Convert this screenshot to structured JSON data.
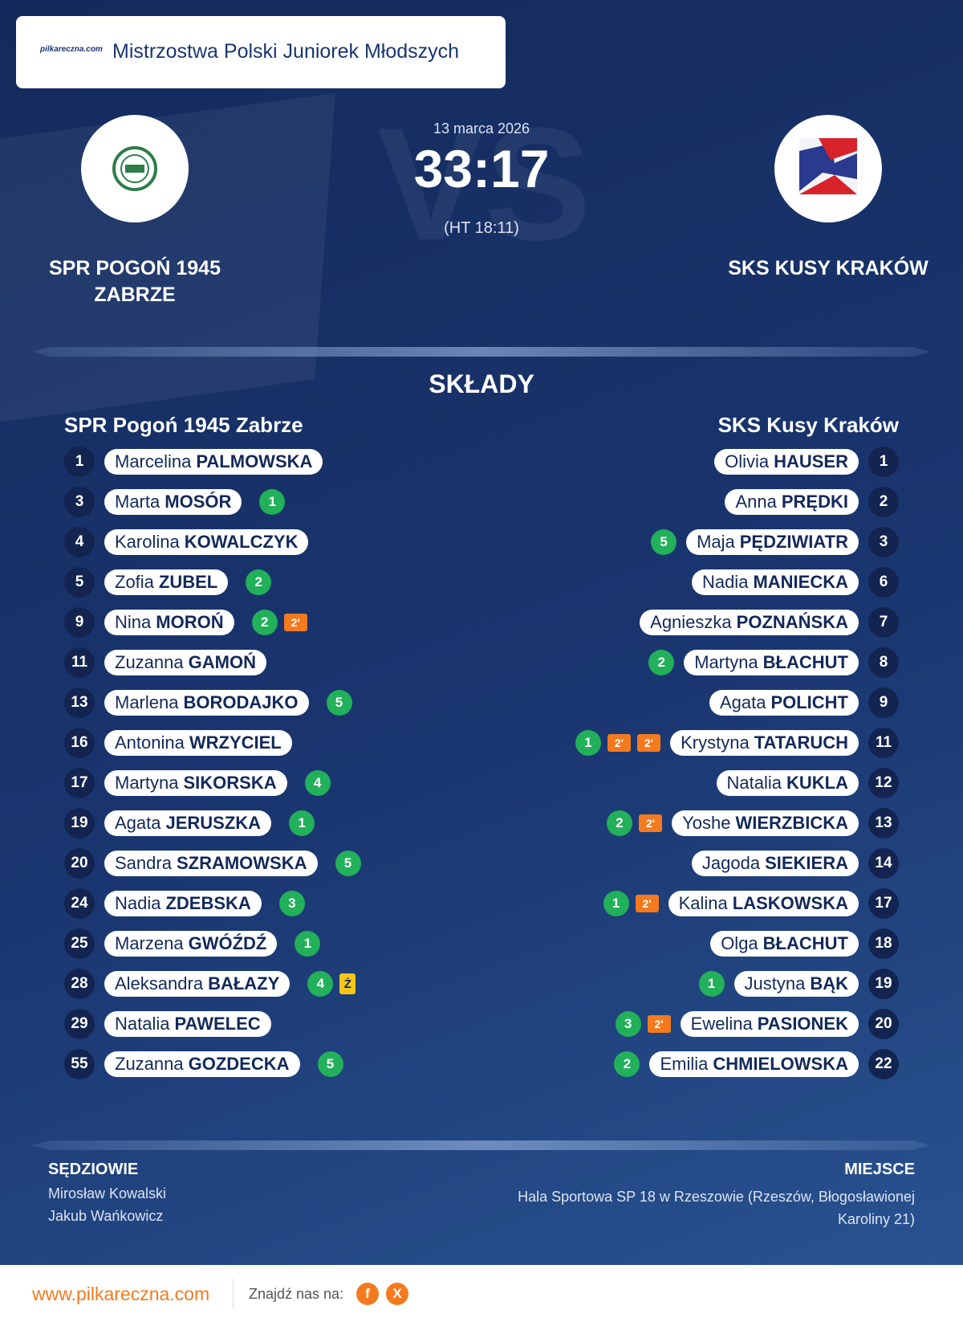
{
  "header": {
    "logo": "pilkareczna.com",
    "title": "Mistrzostwa Polski Juniorek Młodszych"
  },
  "match": {
    "watermark": "VS",
    "date": "13 marca 2026",
    "score": "33:17",
    "halftime": "(HT 18:11)",
    "home_team": "SPR POGOŃ 1945 ZABRZE",
    "away_team": "SKS KUSY KRAKÓW"
  },
  "lineups": {
    "title": "SKŁADY",
    "home": {
      "name": "SPR Pogoń 1945 Zabrze",
      "players": [
        {
          "number": 1,
          "first_name": "Marcelina",
          "last_name": "PALMOWSKA"
        },
        {
          "number": 3,
          "first_name": "Marta",
          "last_name": "MOSÓR",
          "goals": 1
        },
        {
          "number": 4,
          "first_name": "Karolina",
          "last_name": "KOWALCZYK"
        },
        {
          "number": 5,
          "first_name": "Zofia",
          "last_name": "ZUBEL",
          "goals": 2
        },
        {
          "number": 9,
          "first_name": "Nina",
          "last_name": "MOROŃ",
          "goals": 2,
          "suspensions": [
            "2'"
          ]
        },
        {
          "number": 11,
          "first_name": "Zuzanna",
          "last_name": "GAMOŃ"
        },
        {
          "number": 13,
          "first_name": "Marlena",
          "last_name": "BORODAJKO",
          "goals": 5
        },
        {
          "number": 16,
          "first_name": "Antonina",
          "last_name": "WRZYCIEL"
        },
        {
          "number": 17,
          "first_name": "Martyna",
          "last_name": "SIKORSKA",
          "goals": 4
        },
        {
          "number": 19,
          "first_name": "Agata",
          "last_name": "JERUSZKA",
          "goals": 1
        },
        {
          "number": 20,
          "first_name": "Sandra",
          "last_name": "SZRAMOWSKA",
          "goals": 5
        },
        {
          "number": 24,
          "first_name": "Nadia",
          "last_name": "ZDEBSKA",
          "goals": 3
        },
        {
          "number": 25,
          "first_name": "Marzena",
          "last_name": "GWÓŹDŹ",
          "goals": 1
        },
        {
          "number": 28,
          "first_name": "Aleksandra",
          "last_name": "BAŁAZY",
          "goals": 4,
          "cards": [
            "Ż"
          ]
        },
        {
          "number": 29,
          "first_name": "Natalia",
          "last_name": "PAWELEC"
        },
        {
          "number": 55,
          "first_name": "Zuzanna",
          "last_name": "GOZDECKA",
          "goals": 5
        }
      ]
    },
    "away": {
      "name": "SKS Kusy Kraków",
      "players": [
        {
          "number": 1,
          "first_name": "Olivia",
          "last_name": "HAUSER"
        },
        {
          "number": 2,
          "first_name": "Anna",
          "last_name": "PRĘDKI"
        },
        {
          "number": 3,
          "first_name": "Maja",
          "last_name": "PĘDZIWIATR",
          "goals": 5
        },
        {
          "number": 6,
          "first_name": "Nadia",
          "last_name": "MANIECKA"
        },
        {
          "number": 7,
          "first_name": "Agnieszka",
          "last_name": "POZNAŃSKA"
        },
        {
          "number": 8,
          "first_name": "Martyna",
          "last_name": "BŁACHUT",
          "goals": 2
        },
        {
          "number": 9,
          "first_name": "Agata",
          "last_name": "POLICHT"
        },
        {
          "number": 11,
          "first_name": "Krystyna",
          "last_name": "TATARUCH",
          "goals": 1,
          "suspensions": [
            "2'",
            "2'"
          ]
        },
        {
          "number": 12,
          "first_name": "Natalia",
          "last_name": "KUKLA"
        },
        {
          "number": 13,
          "first_name": "Yoshe",
          "last_name": "WIERZBICKA",
          "goals": 2,
          "suspensions": [
            "2'"
          ]
        },
        {
          "number": 14,
          "first_name": "Jagoda",
          "last_name": "SIEKIERA"
        },
        {
          "number": 17,
          "first_name": "Kalina",
          "last_name": "LASKOWSKA",
          "goals": 1,
          "suspensions": [
            "2'"
          ]
        },
        {
          "number": 18,
          "first_name": "Olga",
          "last_name": "BŁACHUT"
        },
        {
          "number": 19,
          "first_name": "Justyna",
          "last_name": "BĄK",
          "goals": 1
        },
        {
          "number": 20,
          "first_name": "Ewelina",
          "last_name": "PASIONEK",
          "goals": 3,
          "suspensions": [
            "2'"
          ]
        },
        {
          "number": 22,
          "first_name": "Emilia",
          "last_name": "CHMIELOWSKA",
          "goals": 2
        }
      ]
    }
  },
  "officials": {
    "title": "SĘDZIOWIE",
    "referees": [
      "Mirosław Kowalski",
      "Jakub Wańkowicz"
    ]
  },
  "venue": {
    "title": "MIEJSCE",
    "text": "Hala Sportowa SP 18 w Rzeszowie (Rzeszów, Błogosławionej Karoliny 21)"
  },
  "footer": {
    "website": "www.pilkareczna.com",
    "follow": "Znajdź nas na:",
    "social": [
      "f",
      "X"
    ]
  }
}
